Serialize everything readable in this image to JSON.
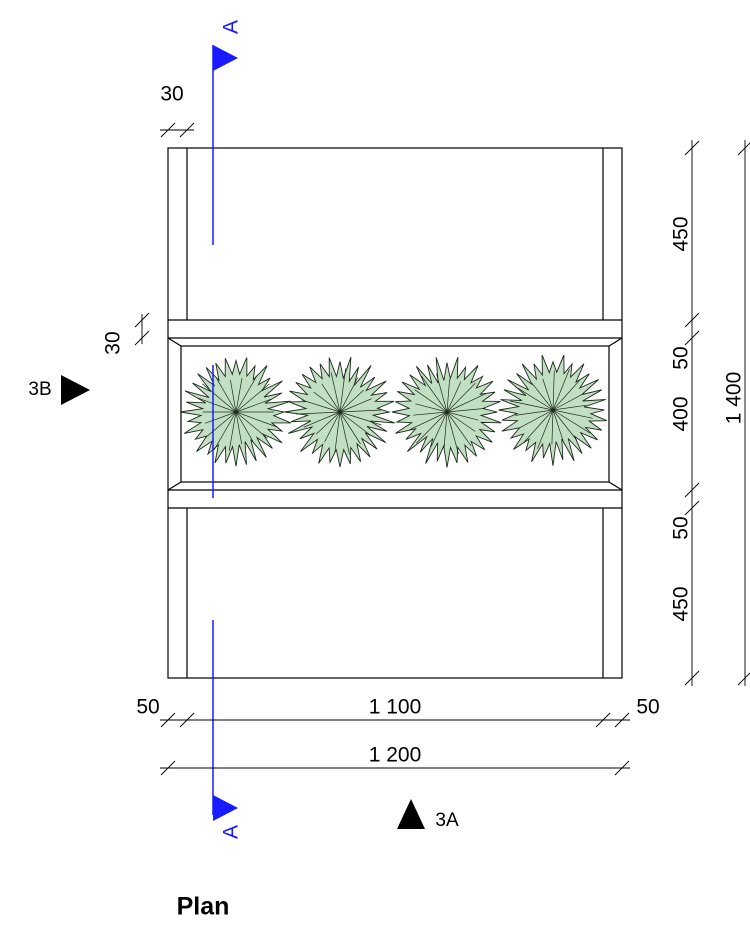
{
  "title": "Plan",
  "section_markers": {
    "top": "A",
    "bottom": "A"
  },
  "elevation_markers": {
    "left": "3B",
    "bottom": "3A"
  },
  "dimensions": {
    "top_offset": "30",
    "left_offset": "30",
    "right_chain": [
      "450",
      "50",
      "400",
      "50",
      "450"
    ],
    "right_total": "1 400",
    "bottom_chain": [
      "50",
      "1 100",
      "50"
    ],
    "bottom_total": "1 200"
  }
}
